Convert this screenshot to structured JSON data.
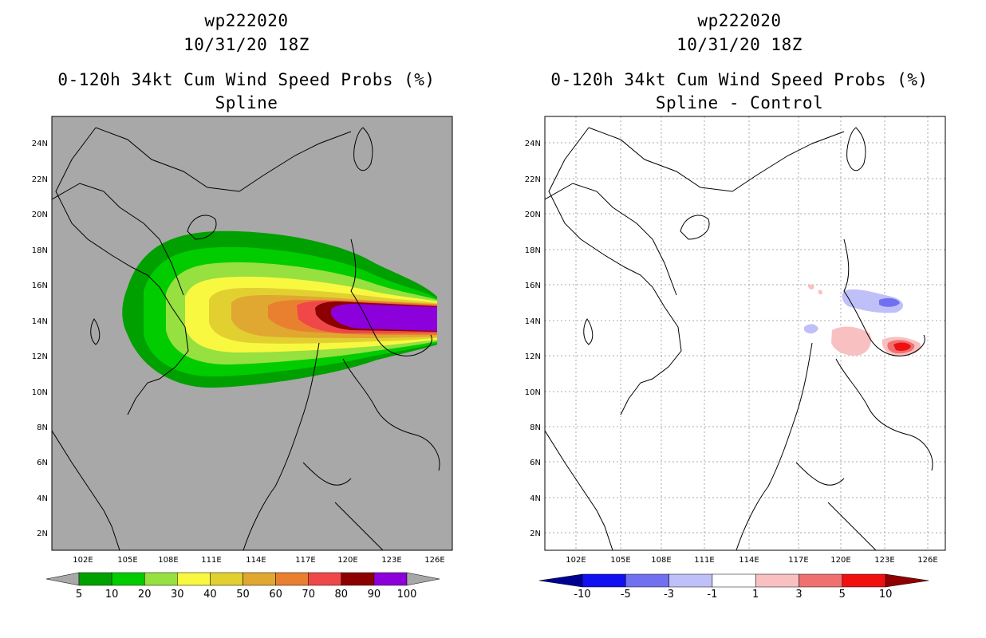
{
  "panels": [
    {
      "title_line1": "wp222020",
      "title_line2": "10/31/20 18Z",
      "title_line3": "0-120h 34kt Cum Wind Speed Probs (%)",
      "title_line4": "Spline",
      "colorbar_labels": [
        "5",
        "10",
        "20",
        "30",
        "40",
        "50",
        "60",
        "70",
        "80",
        "90",
        "100"
      ],
      "colorbar_colors": [
        "#00a000",
        "#00cc00",
        "#96e040",
        "#f8f840",
        "#e2d030",
        "#e0a830",
        "#e88030",
        "#f04848",
        "#8c0000",
        "#8c00dc"
      ],
      "background_color": "#a8a8a8"
    },
    {
      "title_line1": "wp222020",
      "title_line2": "10/31/20 18Z",
      "title_line3": "0-120h 34kt Cum Wind Speed Probs (%)",
      "title_line4": "Spline - Control",
      "colorbar_labels": [
        "-10",
        "-5",
        "-3",
        "-1",
        "1",
        "3",
        "5",
        "10"
      ],
      "colorbar_colors": [
        "#000090",
        "#1010f0",
        "#7070f0",
        "#c0c0f8",
        "#ffffff",
        "#f8c0c0",
        "#f07070",
        "#f01010",
        "#900000"
      ],
      "background_color": "#ffffff"
    }
  ],
  "map": {
    "lon_ticks": [
      "102E",
      "105E",
      "108E",
      "111E",
      "114E",
      "117E",
      "120E",
      "123E",
      "126E"
    ],
    "lat_ticks": [
      "24N",
      "22N",
      "20N",
      "18N",
      "16N",
      "14N",
      "12N",
      "10N",
      "8N",
      "6N",
      "4N",
      "2N"
    ]
  }
}
